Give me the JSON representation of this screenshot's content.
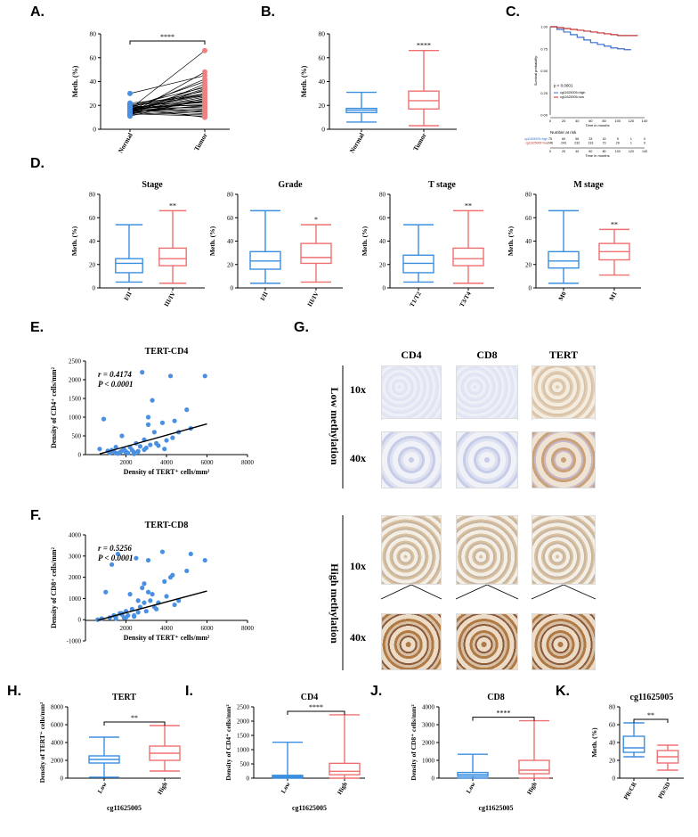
{
  "panel_labels": {
    "A": "A.",
    "B": "B.",
    "C": "C.",
    "D": "D.",
    "E": "E.",
    "F": "F.",
    "G": "G.",
    "H": "H.",
    "I": "I.",
    "J": "J.",
    "K": "K."
  },
  "chart_data": [
    {
      "id": "A",
      "type": "paired-scatter",
      "title": "",
      "xlabel": "",
      "ylabel": "Meth. (%)",
      "categories": [
        "Normal",
        "Tumor"
      ],
      "ylim": [
        0,
        80
      ],
      "yticks": [
        0,
        20,
        40,
        60,
        80
      ],
      "significance": "****",
      "series": [
        {
          "name": "Normal",
          "values": [
            17,
            13,
            30,
            16,
            18,
            12,
            15,
            20,
            14,
            19,
            16,
            17,
            22,
            15,
            11,
            18,
            13,
            16,
            21,
            17,
            14,
            19,
            16,
            18,
            15,
            12,
            17,
            20,
            16,
            14,
            13,
            18,
            19,
            15,
            17,
            16
          ]
        },
        {
          "name": "Tumor",
          "values": [
            66,
            48,
            45,
            42,
            40,
            38,
            36,
            35,
            33,
            32,
            30,
            29,
            28,
            27,
            26,
            25,
            24,
            23,
            22,
            21,
            20,
            20,
            19,
            18,
            17,
            16,
            15,
            14,
            13,
            12,
            11,
            10,
            30,
            34,
            28,
            24
          ]
        }
      ],
      "colors": [
        "#4a90e2",
        "#f08080"
      ]
    },
    {
      "id": "B",
      "type": "boxplot",
      "title": "",
      "xlabel": "",
      "ylabel": "Meth. (%)",
      "categories": [
        "Normal",
        "Tumor"
      ],
      "ylim": [
        0,
        80
      ],
      "yticks": [
        0,
        20,
        40,
        60,
        80
      ],
      "boxes": [
        {
          "min": 6,
          "q1": 14,
          "median": 16,
          "q3": 17.5,
          "max": 31
        },
        {
          "min": 3,
          "q1": 17,
          "median": 24,
          "q3": 32,
          "max": 66
        }
      ],
      "significance": "****",
      "colors": [
        "#3b8fe0",
        "#f07070"
      ]
    },
    {
      "id": "C",
      "type": "line",
      "title": "",
      "xlabel": "Time in months",
      "ylabel": "Survival probability",
      "xlim": [
        0,
        140
      ],
      "ylim": [
        0,
        1
      ],
      "xticks": [
        0,
        20,
        40,
        60,
        80,
        100,
        120,
        140
      ],
      "yticks": [
        0.0,
        0.25,
        0.5,
        0.75,
        1.0
      ],
      "pvalue": "p < 0.0001",
      "series": [
        {
          "name": "cg11625005=high",
          "x": [
            0,
            10,
            20,
            30,
            40,
            50,
            60,
            70,
            80,
            90,
            100,
            110,
            120
          ],
          "values": [
            1.0,
            0.97,
            0.94,
            0.91,
            0.88,
            0.85,
            0.82,
            0.8,
            0.78,
            0.76,
            0.75,
            0.74,
            0.74
          ]
        },
        {
          "name": "cg11625005=low",
          "x": [
            0,
            10,
            20,
            30,
            40,
            50,
            60,
            70,
            80,
            90,
            100,
            110,
            120,
            130
          ],
          "values": [
            1.0,
            0.99,
            0.98,
            0.97,
            0.96,
            0.95,
            0.94,
            0.93,
            0.92,
            0.91,
            0.9,
            0.9,
            0.9,
            0.9
          ]
        }
      ],
      "risk_table": {
        "title": "Number at risk",
        "rows": [
          {
            "label": "cg11625005=high",
            "values": [
              "75",
              "60",
              "56",
              "33",
              "15",
              "5",
              "1",
              "0"
            ]
          },
          {
            "label": "cg11625005=low",
            "values": [
              "246",
              "243",
              "232",
              "133",
              "73",
              "29",
              "1",
              "0"
            ]
          }
        ],
        "xticks": [
          "0",
          "20",
          "40",
          "60",
          "80",
          "100",
          "120",
          "140"
        ],
        "xlabel": "Time in months"
      },
      "colors": [
        "#3b6fd0",
        "#c03030"
      ]
    },
    {
      "id": "D1",
      "type": "boxplot",
      "title": "Stage",
      "ylabel": "Meth. (%)",
      "categories": [
        "I/II",
        "III/IV"
      ],
      "ylim": [
        0,
        80
      ],
      "yticks": [
        0,
        20,
        40,
        60,
        80
      ],
      "boxes": [
        {
          "min": 5,
          "q1": 13,
          "median": 21,
          "q3": 25,
          "max": 54
        },
        {
          "min": 4,
          "q1": 19,
          "median": 25,
          "q3": 34,
          "max": 66
        }
      ],
      "significance": "**",
      "colors": [
        "#3b8fe0",
        "#f07070"
      ]
    },
    {
      "id": "D2",
      "type": "boxplot",
      "title": "Grade",
      "ylabel": "Meth. (%)",
      "categories": [
        "I/II",
        "III/IV"
      ],
      "ylim": [
        0,
        80
      ],
      "yticks": [
        0,
        20,
        40,
        60,
        80
      ],
      "boxes": [
        {
          "min": 4,
          "q1": 16,
          "median": 23,
          "q3": 31,
          "max": 66
        },
        {
          "min": 5,
          "q1": 21,
          "median": 26,
          "q3": 38,
          "max": 54
        }
      ],
      "significance": "*",
      "colors": [
        "#3b8fe0",
        "#f07070"
      ]
    },
    {
      "id": "D3",
      "type": "boxplot",
      "title": "T stage",
      "ylabel": "Meth. (%)",
      "categories": [
        "T1/T2",
        "T3/T4"
      ],
      "ylim": [
        0,
        80
      ],
      "yticks": [
        0,
        20,
        40,
        60,
        80
      ],
      "boxes": [
        {
          "min": 5,
          "q1": 13,
          "median": 21,
          "q3": 28,
          "max": 54
        },
        {
          "min": 4,
          "q1": 19,
          "median": 25,
          "q3": 34,
          "max": 66
        }
      ],
      "significance": "**",
      "colors": [
        "#3b8fe0",
        "#f07070"
      ]
    },
    {
      "id": "D4",
      "type": "boxplot",
      "title": "M stage",
      "ylabel": "Meth. (%)",
      "categories": [
        "M0",
        "M1"
      ],
      "ylim": [
        0,
        80
      ],
      "yticks": [
        0,
        20,
        40,
        60,
        80
      ],
      "boxes": [
        {
          "min": 4,
          "q1": 17,
          "median": 23,
          "q3": 31,
          "max": 66
        },
        {
          "min": 11,
          "q1": 24,
          "median": 31,
          "q3": 38,
          "max": 50
        }
      ],
      "significance": "**",
      "colors": [
        "#3b8fe0",
        "#f07070"
      ]
    },
    {
      "id": "E",
      "type": "scatter",
      "title": "TERT-CD4",
      "xlabel": "Density of TERT⁺ cells/mm²",
      "ylabel": "Density of CD4⁺ cells/mm²",
      "xlim": [
        0,
        8000
      ],
      "ylim": [
        0,
        2500
      ],
      "xticks": [
        2000,
        4000,
        6000,
        8000
      ],
      "yticks": [
        0,
        500,
        1000,
        1500,
        2000,
        2500
      ],
      "r_text": "r = 0.4174",
      "p_text": "P < 0.0001",
      "x": [
        700,
        900,
        1100,
        1200,
        1300,
        1400,
        1500,
        1600,
        1700,
        1800,
        1900,
        2000,
        2100,
        2200,
        2300,
        2400,
        2500,
        2600,
        2700,
        2800,
        2900,
        3000,
        3100,
        3200,
        3300,
        3400,
        3600,
        3800,
        4000,
        4200,
        4400,
        4600,
        5000,
        5200,
        5900,
        1500,
        2000,
        2400,
        2900,
        3500,
        1800,
        2600,
        3100,
        3900,
        4300
      ],
      "y": [
        150,
        950,
        100,
        50,
        120,
        80,
        200,
        30,
        60,
        100,
        150,
        80,
        40,
        200,
        120,
        60,
        300,
        90,
        220,
        2200,
        400,
        180,
        800,
        260,
        1450,
        600,
        240,
        850,
        380,
        2100,
        900,
        600,
        1200,
        700,
        2100,
        40,
        60,
        20,
        130,
        300,
        500,
        80,
        1000,
        150,
        450
      ],
      "fit": {
        "x": [
          700,
          6000
        ],
        "y": [
          20,
          820
        ]
      },
      "colors": [
        "#4a90e2",
        "#000000"
      ]
    },
    {
      "id": "F",
      "type": "scatter",
      "title": "TERT-CD8",
      "xlabel": "Density of TERT⁺ cells/mm²",
      "ylabel": "Density of CD8⁺ cells/mm²",
      "xlim": [
        0,
        8000
      ],
      "ylim": [
        -1000,
        4000
      ],
      "xticks": [
        2000,
        4000,
        6000,
        8000
      ],
      "yticks": [
        -1000,
        0,
        1000,
        2000,
        3000,
        4000
      ],
      "r_text": "r = 0.5256",
      "p_text": "P < 0.0001",
      "x": [
        600,
        800,
        1000,
        1200,
        1300,
        1400,
        1500,
        1600,
        1700,
        1800,
        1900,
        2000,
        2100,
        2200,
        2300,
        2400,
        2500,
        2600,
        2700,
        2800,
        2900,
        3000,
        3100,
        3200,
        3300,
        3400,
        3600,
        3800,
        4000,
        4200,
        4400,
        4600,
        5000,
        5200,
        5900,
        1500,
        2000,
        2400,
        2900,
        3500,
        1800,
        2600,
        3100,
        3900,
        4300
      ],
      "y": [
        0,
        50,
        1300,
        100,
        2600,
        200,
        150,
        3100,
        300,
        250,
        100,
        400,
        200,
        1200,
        500,
        150,
        2900,
        350,
        600,
        1500,
        800,
        400,
        2800,
        900,
        1200,
        600,
        800,
        3200,
        1100,
        2000,
        700,
        900,
        2300,
        3100,
        2800,
        50,
        100,
        200,
        1700,
        500,
        300,
        900,
        1300,
        1800,
        2100
      ],
      "fit": {
        "x": [
          600,
          6000
        ],
        "y": [
          -30,
          1350
        ]
      },
      "colors": [
        "#4a90e2",
        "#000000"
      ]
    },
    {
      "id": "H",
      "type": "boxplot",
      "title": "TERT",
      "xlabel": "cg11625005",
      "ylabel": "Density of TERT⁺ cells/mm²",
      "categories": [
        "Low",
        "High"
      ],
      "ylim": [
        0,
        8000
      ],
      "yticks": [
        0,
        2000,
        4000,
        6000,
        8000
      ],
      "boxes": [
        {
          "min": 100,
          "q1": 1700,
          "median": 2100,
          "q3": 2500,
          "max": 4600
        },
        {
          "min": 800,
          "q1": 2000,
          "median": 2800,
          "q3": 3600,
          "max": 5900
        }
      ],
      "significance": "**",
      "colors": [
        "#3b8fe0",
        "#f07070"
      ]
    },
    {
      "id": "I",
      "type": "boxplot",
      "title": "CD4",
      "xlabel": "cg11625005",
      "ylabel": "Density of CD4⁺ cells/mm²",
      "categories": [
        "Low",
        "High"
      ],
      "ylim": [
        0,
        2500
      ],
      "yticks": [
        0,
        500,
        1000,
        1500,
        2000,
        2500
      ],
      "boxes": [
        {
          "min": 0,
          "q1": 30,
          "median": 60,
          "q3": 100,
          "max": 1260
        },
        {
          "min": 0,
          "q1": 120,
          "median": 240,
          "q3": 520,
          "max": 2220
        }
      ],
      "significance": "****",
      "colors": [
        "#3b8fe0",
        "#f07070"
      ]
    },
    {
      "id": "J",
      "type": "boxplot",
      "title": "CD8",
      "xlabel": "cg11625005",
      "ylabel": "Density of CD8⁺ cells/mm²",
      "categories": [
        "Low",
        "High"
      ],
      "ylim": [
        0,
        4000
      ],
      "yticks": [
        0,
        1000,
        2000,
        3000,
        4000
      ],
      "boxes": [
        {
          "min": 0,
          "q1": 100,
          "median": 200,
          "q3": 320,
          "max": 1340
        },
        {
          "min": 0,
          "q1": 250,
          "median": 450,
          "q3": 1000,
          "max": 3220
        }
      ],
      "significance": "****",
      "colors": [
        "#3b8fe0",
        "#f07070"
      ]
    },
    {
      "id": "K",
      "type": "boxplot",
      "title": "cg11625005",
      "xlabel": "",
      "ylabel": "Meth. (%)",
      "categories": [
        "PR/CR",
        "PD/SD"
      ],
      "ylim": [
        0,
        80
      ],
      "yticks": [
        0,
        20,
        40,
        60,
        80
      ],
      "boxes": [
        {
          "min": 24,
          "q1": 29,
          "median": 34,
          "q3": 47,
          "max": 62
        },
        {
          "min": 9,
          "q1": 17,
          "median": 24,
          "q3": 31,
          "max": 37
        }
      ],
      "significance": "**",
      "colors": [
        "#3b8fe0",
        "#f07070"
      ]
    }
  ],
  "histology": {
    "columns": [
      "CD4",
      "CD8",
      "TERT"
    ],
    "rows": [
      {
        "group": "Low methylation",
        "mags": [
          "10x",
          "40x"
        ]
      },
      {
        "group": "High methylation",
        "mags": [
          "10x",
          "40x"
        ]
      }
    ]
  }
}
